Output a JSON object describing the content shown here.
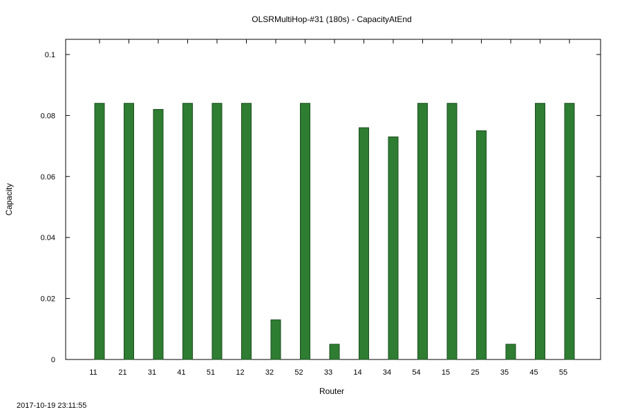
{
  "timestamp": "2017-10-19 23:11:55",
  "colors": {
    "bar_fill": "#2e7d32",
    "bar_stroke": "#1b4d1d",
    "axis": "#000000",
    "background": "#ffffff"
  },
  "chart_data": {
    "type": "bar",
    "title": "OLSRMultiHop-#31 (180s) - CapacityAtEnd",
    "xlabel": "Router",
    "ylabel": "Capacity",
    "ylim": [
      0,
      0.1
    ],
    "yticks": [
      "0",
      "0.02",
      "0.04",
      "0.06",
      "0.08",
      "0.1"
    ],
    "ytick_values": [
      0,
      0.02,
      0.04,
      0.06,
      0.08,
      0.1
    ],
    "grid": false,
    "legend": "none",
    "categories": [
      "11",
      "21",
      "31",
      "41",
      "51",
      "12",
      "32",
      "52",
      "33",
      "14",
      "34",
      "54",
      "15",
      "25",
      "35",
      "45",
      "55"
    ],
    "values": [
      0.084,
      0.084,
      0.082,
      0.084,
      0.084,
      0.084,
      0.013,
      0.084,
      0.005,
      0.076,
      0.073,
      0.084,
      0.084,
      0.075,
      0.005,
      0.084,
      0.084
    ]
  }
}
